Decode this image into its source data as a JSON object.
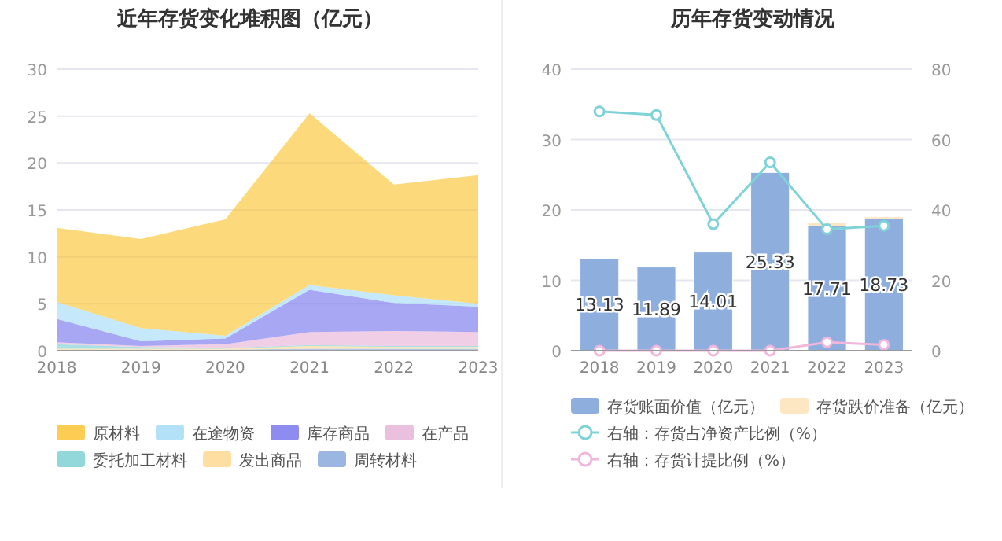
{
  "chart_data": [
    {
      "type": "area",
      "title": "近年存货变化堆积图（亿元）",
      "stacked": true,
      "categories": [
        "2018",
        "2019",
        "2020",
        "2021",
        "2022",
        "2023"
      ],
      "ylim": [
        0,
        30
      ],
      "yticks": [
        0,
        5,
        10,
        15,
        20,
        25,
        30
      ],
      "grid": "y",
      "legend": "bottom",
      "series": [
        {
          "name": "周转材料",
          "color": "#8aa9da",
          "values": [
            0.1,
            0.1,
            0.1,
            0.2,
            0.2,
            0.2
          ]
        },
        {
          "name": "发出商品",
          "color": "#ffd891",
          "values": [
            0.1,
            0.1,
            0.1,
            0.3,
            0.2,
            0.2
          ]
        },
        {
          "name": "委托加工材料",
          "color": "#7fd1d4",
          "values": [
            0.5,
            0.2,
            0.1,
            0.1,
            0.1,
            0.1
          ]
        },
        {
          "name": "在产品",
          "color": "#e8b4d8",
          "values": [
            0.2,
            0.1,
            0.4,
            1.4,
            1.6,
            1.5
          ]
        },
        {
          "name": "库存商品",
          "color": "#7a78ee",
          "values": [
            2.5,
            0.5,
            0.6,
            4.5,
            3.0,
            2.7
          ]
        },
        {
          "name": "在途物资",
          "color": "#a6dcf7",
          "values": [
            1.8,
            1.4,
            0.3,
            0.5,
            0.8,
            0.3
          ]
        },
        {
          "name": "原材料",
          "color": "#fbc434",
          "values": [
            7.9,
            9.5,
            12.4,
            18.3,
            11.8,
            13.7
          ]
        }
      ]
    },
    {
      "type": "bar",
      "title": "历年存货变动情况",
      "stacked": true,
      "categories": [
        "2018",
        "2019",
        "2020",
        "2021",
        "2022",
        "2023"
      ],
      "ylim": [
        0,
        40
      ],
      "yticks": [
        0,
        10,
        20,
        30,
        40
      ],
      "y2lim": [
        0,
        80
      ],
      "y2ticks": [
        0,
        20,
        40,
        60,
        80
      ],
      "grid": "y",
      "legend": "bottom",
      "series": [
        {
          "name": "存货账面价值（亿元）",
          "color": "#8eaedd",
          "values": [
            13.13,
            11.89,
            14.01,
            25.33,
            17.71,
            18.73
          ],
          "value_labels": [
            "13.13",
            "11.89",
            "14.01",
            "25.33",
            "17.71",
            "18.73"
          ]
        },
        {
          "name": "存货跌价准备（亿元）",
          "color": "#fde6c2",
          "values": [
            0,
            0,
            0,
            0,
            0.5,
            0.3
          ]
        },
        {
          "name": "右轴：存货占净资产比例（%）",
          "type": "line",
          "axis": "y2",
          "marker": "circle",
          "color": "#7fd3d8",
          "values": [
            68,
            67,
            36,
            53.5,
            34.5,
            35.5
          ]
        },
        {
          "name": "右轴：存货计提比例（%）",
          "type": "line",
          "axis": "y2",
          "marker": "circle",
          "color": "#f0b6dc",
          "values": [
            0,
            0,
            0,
            0,
            2.4,
            1.7
          ]
        }
      ]
    }
  ]
}
